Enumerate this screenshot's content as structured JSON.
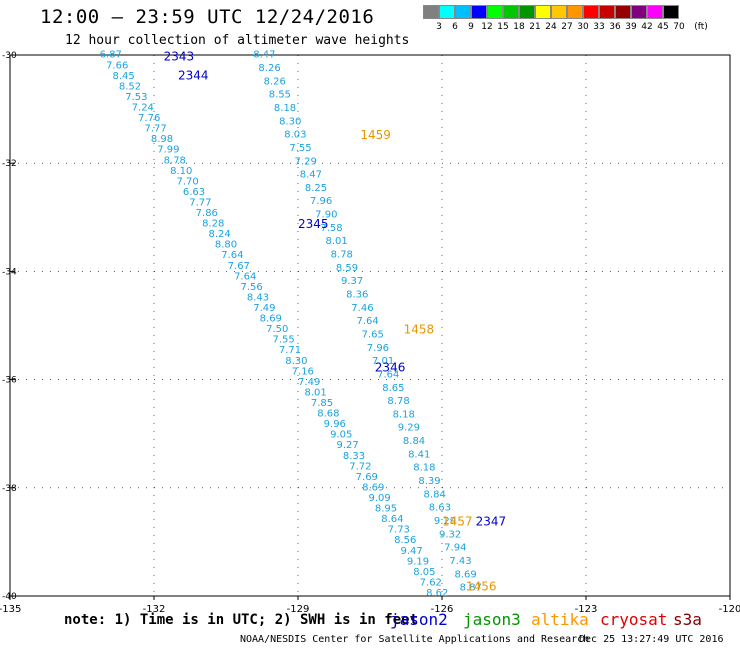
{
  "header": {
    "title": "12:00 – 23:59 UTC 12/24/2016",
    "subtitle": "12 hour collection of altimeter wave heights"
  },
  "legend": {
    "colors": [
      "#808080",
      "#00ffff",
      "#00bfff",
      "#0000ff",
      "#00ff00",
      "#00c800",
      "#009600",
      "#ffff00",
      "#ffc800",
      "#ff9600",
      "#ff0000",
      "#c80000",
      "#960000",
      "#800080",
      "#ff00ff",
      "#000000"
    ],
    "labels": [
      "3",
      "6",
      "9",
      "12",
      "15",
      "18",
      "21",
      "24",
      "27",
      "30",
      "33",
      "36",
      "39",
      "42",
      "45",
      "70",
      "(ft)"
    ]
  },
  "map": {
    "lon_ticks": [
      "-135",
      "-132",
      "-129",
      "-126",
      "-123",
      "-120"
    ],
    "lat_ticks": [
      "-30",
      "-32",
      "-34",
      "-36",
      "-38",
      "-40"
    ],
    "lon_range": [
      -135,
      -120
    ],
    "lat_range": [
      -30,
      -40
    ]
  },
  "tracks": [
    {
      "lon0": -132.9,
      "lat0": -30.05,
      "lon1": -126.1,
      "lat1": -40.0,
      "color": "#1aa3e0",
      "values": [
        "6.87",
        "7.66",
        "8.45",
        "8.52",
        "7.53",
        "7.24",
        "7.76",
        "7.77",
        "8.98",
        "7.99",
        "8.78",
        "8.10",
        "7.70",
        "6.63",
        "7.77",
        "7.86",
        "8.28",
        "8.24",
        "8.80",
        "7.64",
        "7.67",
        "7.64",
        "7.56",
        "8.43",
        "7.49",
        "8.69",
        "7.50",
        "7.55",
        "7.71",
        "8.30",
        "7.16",
        "7.49",
        "8.01",
        "7.85",
        "8.68",
        "9.96",
        "9.05",
        "9.27",
        "8.33",
        "7.72",
        "7.69",
        "8.69",
        "9.09",
        "8.95",
        "8.64",
        "7.73",
        "8.56",
        "9.47",
        "9.19",
        "8.05",
        "7.62",
        "8.62"
      ]
    },
    {
      "lon0": -129.7,
      "lat0": -30.05,
      "lon1": -125.4,
      "lat1": -39.9,
      "color": "#1aa3e0",
      "values": [
        "8.47",
        "8.26",
        "8.26",
        "8.55",
        "8.18",
        "8.30",
        "8.03",
        "7.55",
        "7.29",
        "8.47",
        "8.25",
        "7.96",
        "7.90",
        "7.58",
        "8.01",
        "8.78",
        "8.59",
        "9.37",
        "8.36",
        "7.46",
        "7.64",
        "7.65",
        "7.96",
        "7.01",
        "7.64",
        "8.65",
        "8.78",
        "8.18",
        "9.29",
        "8.84",
        "8.41",
        "8.18",
        "8.39",
        "8.84",
        "8.63",
        "9.29",
        "9.32",
        "7.94",
        "7.43",
        "8.69",
        "8.87"
      ]
    }
  ],
  "pass_labels": [
    {
      "text": "2343",
      "lon": -131.8,
      "lat": -30.1,
      "color": "#0000cc"
    },
    {
      "text": "2344",
      "lon": -131.5,
      "lat": -30.45,
      "color": "#0000cc"
    },
    {
      "text": "1459",
      "lon": -127.7,
      "lat": -31.55,
      "color": "#e89600"
    },
    {
      "text": "2345",
      "lon": -129.0,
      "lat": -33.2,
      "color": "#0000cc"
    },
    {
      "text": "1458",
      "lon": -126.8,
      "lat": -35.15,
      "color": "#e89600"
    },
    {
      "text": "2346",
      "lon": -127.4,
      "lat": -35.85,
      "color": "#0000cc"
    },
    {
      "text": "1457",
      "lon": -126.0,
      "lat": -38.7,
      "color": "#e89600"
    },
    {
      "text": "2347",
      "lon": -125.3,
      "lat": -38.7,
      "color": "#0000cc"
    },
    {
      "text": "1456",
      "lon": -125.5,
      "lat": -39.9,
      "color": "#e89600"
    }
  ],
  "note": "note: 1) Time is in UTC; 2) SWH is in feet",
  "satellites": [
    {
      "name": "jason2",
      "color": "#0000cc"
    },
    {
      "name": "jason3",
      "color": "#009600"
    },
    {
      "name": "altika",
      "color": "#ff9600"
    },
    {
      "name": "cryosat",
      "color": "#e00000"
    },
    {
      "name": "s3a",
      "color": "#800000"
    }
  ],
  "footer": {
    "credit": "NOAA/NESDIS Center for Satellite Applications and Research",
    "timestamp": "Dec 25 13:27:49 UTC 2016"
  }
}
